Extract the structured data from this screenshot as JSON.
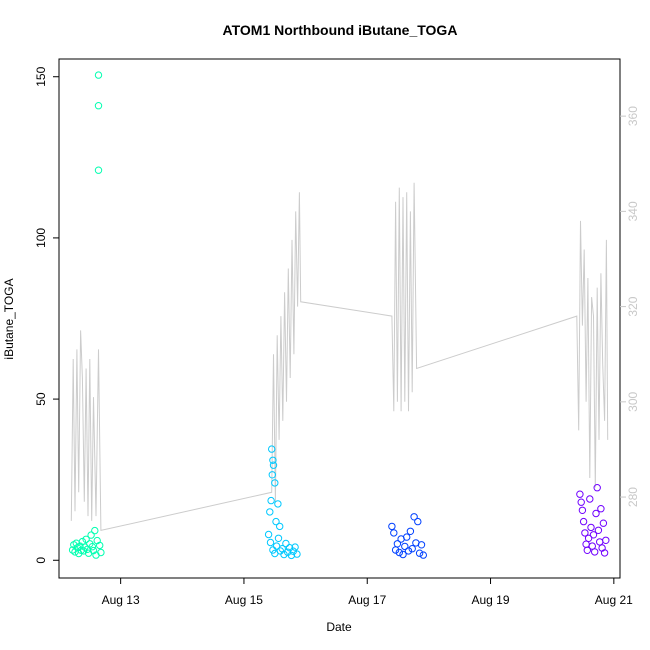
{
  "chart_data": {
    "type": "scatter",
    "title": "ATOM1 Northbound iButane_TOGA",
    "xlabel": "Date",
    "ylabel": "iButane_TOGA",
    "x_unit": "day of August",
    "xlim": [
      12.0,
      21.1
    ],
    "ylim": [
      -5.5,
      155.5
    ],
    "x_ticks": [
      {
        "value": 13,
        "label": "Aug 13"
      },
      {
        "value": 15,
        "label": "Aug 15"
      },
      {
        "value": 17,
        "label": "Aug 17"
      },
      {
        "value": 19,
        "label": "Aug 19"
      },
      {
        "value": 21,
        "label": "Aug 21"
      }
    ],
    "y_ticks": [
      0,
      50,
      100,
      150
    ],
    "y2_ticks": [
      280,
      300,
      320,
      340,
      360
    ],
    "y2lim": [
      263,
      372
    ],
    "grid": false,
    "series": [
      {
        "name": "iButane_TOGA",
        "marker": "open-circle",
        "points": [
          {
            "x": 12.22,
            "y": 3.2,
            "color": "#00ffb0"
          },
          {
            "x": 12.24,
            "y": 4.8,
            "color": "#00ffb0"
          },
          {
            "x": 12.26,
            "y": 2.6,
            "color": "#00ffb0"
          },
          {
            "x": 12.28,
            "y": 5.3,
            "color": "#00ffb0"
          },
          {
            "x": 12.3,
            "y": 3.9,
            "color": "#00ffb0"
          },
          {
            "x": 12.32,
            "y": 2.1,
            "color": "#00ffb0"
          },
          {
            "x": 12.34,
            "y": 4.4,
            "color": "#00ffb0"
          },
          {
            "x": 12.36,
            "y": 3.1,
            "color": "#00ffb0"
          },
          {
            "x": 12.38,
            "y": 5.8,
            "color": "#00ffb0"
          },
          {
            "x": 12.4,
            "y": 2.9,
            "color": "#00ffb0"
          },
          {
            "x": 12.42,
            "y": 4.1,
            "color": "#00ffb0"
          },
          {
            "x": 12.44,
            "y": 6.5,
            "color": "#00ffb0"
          },
          {
            "x": 12.46,
            "y": 3.4,
            "color": "#00ffb0"
          },
          {
            "x": 12.48,
            "y": 2.2,
            "color": "#00ffb0"
          },
          {
            "x": 12.5,
            "y": 5.1,
            "color": "#00ffb0"
          },
          {
            "x": 12.52,
            "y": 7.8,
            "color": "#00ffb0"
          },
          {
            "x": 12.54,
            "y": 4.2,
            "color": "#00ffb0"
          },
          {
            "x": 12.56,
            "y": 3.0,
            "color": "#00ffb0"
          },
          {
            "x": 12.58,
            "y": 9.2,
            "color": "#00ffb0"
          },
          {
            "x": 12.6,
            "y": 1.6,
            "color": "#00ffb0"
          },
          {
            "x": 12.62,
            "y": 6.1,
            "color": "#00ffb0"
          },
          {
            "x": 12.64,
            "y": 150.5,
            "color": "#00ffb0"
          },
          {
            "x": 12.64,
            "y": 141.0,
            "color": "#00ffb0"
          },
          {
            "x": 12.64,
            "y": 121.0,
            "color": "#00ffb0"
          },
          {
            "x": 12.66,
            "y": 4.6,
            "color": "#00ffb0"
          },
          {
            "x": 12.68,
            "y": 2.4,
            "color": "#00ffb0"
          },
          {
            "x": 15.45,
            "y": 34.5,
            "color": "#00c8ff"
          },
          {
            "x": 15.47,
            "y": 31.0,
            "color": "#00c8ff"
          },
          {
            "x": 15.48,
            "y": 29.5,
            "color": "#00c8ff"
          },
          {
            "x": 15.46,
            "y": 26.5,
            "color": "#00c8ff"
          },
          {
            "x": 15.5,
            "y": 24.0,
            "color": "#00c8ff"
          },
          {
            "x": 15.44,
            "y": 18.5,
            "color": "#00c8ff"
          },
          {
            "x": 15.55,
            "y": 17.5,
            "color": "#00c8ff"
          },
          {
            "x": 15.42,
            "y": 15.0,
            "color": "#00c8ff"
          },
          {
            "x": 15.52,
            "y": 12.0,
            "color": "#00c8ff"
          },
          {
            "x": 15.58,
            "y": 10.5,
            "color": "#00c8ff"
          },
          {
            "x": 15.4,
            "y": 8.0,
            "color": "#00c8ff"
          },
          {
            "x": 15.43,
            "y": 5.5,
            "color": "#00c8ff"
          },
          {
            "x": 15.47,
            "y": 3.2,
            "color": "#00c8ff"
          },
          {
            "x": 15.5,
            "y": 2.1,
            "color": "#00c8ff"
          },
          {
            "x": 15.53,
            "y": 4.4,
            "color": "#00c8ff"
          },
          {
            "x": 15.56,
            "y": 6.8,
            "color": "#00c8ff"
          },
          {
            "x": 15.59,
            "y": 2.9,
            "color": "#00c8ff"
          },
          {
            "x": 15.62,
            "y": 3.6,
            "color": "#00c8ff"
          },
          {
            "x": 15.65,
            "y": 1.8,
            "color": "#00c8ff"
          },
          {
            "x": 15.68,
            "y": 5.2,
            "color": "#00c8ff"
          },
          {
            "x": 15.71,
            "y": 2.5,
            "color": "#00c8ff"
          },
          {
            "x": 15.74,
            "y": 3.9,
            "color": "#00c8ff"
          },
          {
            "x": 15.77,
            "y": 1.5,
            "color": "#00c8ff"
          },
          {
            "x": 15.8,
            "y": 2.8,
            "color": "#00c8ff"
          },
          {
            "x": 15.83,
            "y": 4.1,
            "color": "#00c8ff"
          },
          {
            "x": 15.86,
            "y": 1.9,
            "color": "#00c8ff"
          },
          {
            "x": 17.4,
            "y": 10.5,
            "color": "#0040ff"
          },
          {
            "x": 17.43,
            "y": 8.5,
            "color": "#0040ff"
          },
          {
            "x": 17.46,
            "y": 3.2,
            "color": "#0040ff"
          },
          {
            "x": 17.49,
            "y": 5.1,
            "color": "#0040ff"
          },
          {
            "x": 17.52,
            "y": 2.4,
            "color": "#0040ff"
          },
          {
            "x": 17.55,
            "y": 6.6,
            "color": "#0040ff"
          },
          {
            "x": 17.58,
            "y": 1.8,
            "color": "#0040ff"
          },
          {
            "x": 17.61,
            "y": 4.3,
            "color": "#0040ff"
          },
          {
            "x": 17.64,
            "y": 7.2,
            "color": "#0040ff"
          },
          {
            "x": 17.67,
            "y": 2.9,
            "color": "#0040ff"
          },
          {
            "x": 17.7,
            "y": 9.0,
            "color": "#0040ff"
          },
          {
            "x": 17.73,
            "y": 3.6,
            "color": "#0040ff"
          },
          {
            "x": 17.76,
            "y": 13.5,
            "color": "#0040ff"
          },
          {
            "x": 17.79,
            "y": 5.4,
            "color": "#0040ff"
          },
          {
            "x": 17.82,
            "y": 12.0,
            "color": "#0040ff"
          },
          {
            "x": 17.85,
            "y": 2.2,
            "color": "#0040ff"
          },
          {
            "x": 17.88,
            "y": 4.8,
            "color": "#0040ff"
          },
          {
            "x": 17.91,
            "y": 1.6,
            "color": "#0040ff"
          },
          {
            "x": 20.45,
            "y": 20.5,
            "color": "#7000ff"
          },
          {
            "x": 20.47,
            "y": 18.0,
            "color": "#7000ff"
          },
          {
            "x": 20.49,
            "y": 15.5,
            "color": "#7000ff"
          },
          {
            "x": 20.51,
            "y": 12.0,
            "color": "#7000ff"
          },
          {
            "x": 20.53,
            "y": 8.5,
            "color": "#7000ff"
          },
          {
            "x": 20.55,
            "y": 5.0,
            "color": "#7000ff"
          },
          {
            "x": 20.57,
            "y": 3.1,
            "color": "#7000ff"
          },
          {
            "x": 20.59,
            "y": 6.8,
            "color": "#7000ff"
          },
          {
            "x": 20.61,
            "y": 19.0,
            "color": "#7000ff"
          },
          {
            "x": 20.63,
            "y": 10.2,
            "color": "#7000ff"
          },
          {
            "x": 20.65,
            "y": 4.4,
            "color": "#7000ff"
          },
          {
            "x": 20.67,
            "y": 7.9,
            "color": "#7000ff"
          },
          {
            "x": 20.69,
            "y": 2.6,
            "color": "#7000ff"
          },
          {
            "x": 20.71,
            "y": 14.5,
            "color": "#7000ff"
          },
          {
            "x": 20.73,
            "y": 22.5,
            "color": "#7000ff"
          },
          {
            "x": 20.75,
            "y": 9.3,
            "color": "#7000ff"
          },
          {
            "x": 20.77,
            "y": 5.7,
            "color": "#7000ff"
          },
          {
            "x": 20.79,
            "y": 16.0,
            "color": "#7000ff"
          },
          {
            "x": 20.81,
            "y": 3.8,
            "color": "#7000ff"
          },
          {
            "x": 20.83,
            "y": 11.5,
            "color": "#7000ff"
          },
          {
            "x": 20.85,
            "y": 2.3,
            "color": "#7000ff"
          },
          {
            "x": 20.87,
            "y": 6.2,
            "color": "#7000ff"
          }
        ]
      },
      {
        "name": "right-axis trace",
        "type": "line",
        "axis": "right",
        "color": "#cccccc",
        "points": [
          {
            "x": 12.2,
            "y": 275
          },
          {
            "x": 12.23,
            "y": 309
          },
          {
            "x": 12.26,
            "y": 277
          },
          {
            "x": 12.29,
            "y": 311
          },
          {
            "x": 12.32,
            "y": 281
          },
          {
            "x": 12.35,
            "y": 315
          },
          {
            "x": 12.38,
            "y": 305
          },
          {
            "x": 12.41,
            "y": 279
          },
          {
            "x": 12.44,
            "y": 307
          },
          {
            "x": 12.47,
            "y": 276
          },
          {
            "x": 12.5,
            "y": 309
          },
          {
            "x": 12.53,
            "y": 275
          },
          {
            "x": 12.56,
            "y": 301
          },
          {
            "x": 12.6,
            "y": 276
          },
          {
            "x": 12.64,
            "y": 311
          },
          {
            "x": 12.68,
            "y": 273
          },
          {
            "x": 15.45,
            "y": 281
          },
          {
            "x": 15.48,
            "y": 310
          },
          {
            "x": 15.51,
            "y": 279
          },
          {
            "x": 15.54,
            "y": 314
          },
          {
            "x": 15.57,
            "y": 292
          },
          {
            "x": 15.6,
            "y": 318
          },
          {
            "x": 15.63,
            "y": 296
          },
          {
            "x": 15.66,
            "y": 323
          },
          {
            "x": 15.69,
            "y": 300
          },
          {
            "x": 15.72,
            "y": 328
          },
          {
            "x": 15.75,
            "y": 305
          },
          {
            "x": 15.78,
            "y": 334
          },
          {
            "x": 15.81,
            "y": 310
          },
          {
            "x": 15.84,
            "y": 340
          },
          {
            "x": 15.87,
            "y": 320
          },
          {
            "x": 15.9,
            "y": 344
          },
          {
            "x": 15.92,
            "y": 321
          },
          {
            "x": 17.4,
            "y": 318
          },
          {
            "x": 17.43,
            "y": 298
          },
          {
            "x": 17.46,
            "y": 342
          },
          {
            "x": 17.49,
            "y": 300
          },
          {
            "x": 17.52,
            "y": 345
          },
          {
            "x": 17.55,
            "y": 298
          },
          {
            "x": 17.58,
            "y": 343
          },
          {
            "x": 17.61,
            "y": 300
          },
          {
            "x": 17.64,
            "y": 344
          },
          {
            "x": 17.67,
            "y": 298
          },
          {
            "x": 17.7,
            "y": 340
          },
          {
            "x": 17.73,
            "y": 302
          },
          {
            "x": 17.76,
            "y": 346
          },
          {
            "x": 17.8,
            "y": 307
          },
          {
            "x": 20.4,
            "y": 318
          },
          {
            "x": 20.43,
            "y": 294
          },
          {
            "x": 20.46,
            "y": 338
          },
          {
            "x": 20.49,
            "y": 316
          },
          {
            "x": 20.52,
            "y": 332
          },
          {
            "x": 20.55,
            "y": 300
          },
          {
            "x": 20.58,
            "y": 326
          },
          {
            "x": 20.61,
            "y": 284
          },
          {
            "x": 20.64,
            "y": 322
          },
          {
            "x": 20.67,
            "y": 318
          },
          {
            "x": 20.7,
            "y": 282
          },
          {
            "x": 20.73,
            "y": 324
          },
          {
            "x": 20.76,
            "y": 292
          },
          {
            "x": 20.79,
            "y": 327
          },
          {
            "x": 20.82,
            "y": 308
          },
          {
            "x": 20.85,
            "y": 296
          },
          {
            "x": 20.88,
            "y": 334
          },
          {
            "x": 20.9,
            "y": 292
          }
        ]
      }
    ]
  }
}
